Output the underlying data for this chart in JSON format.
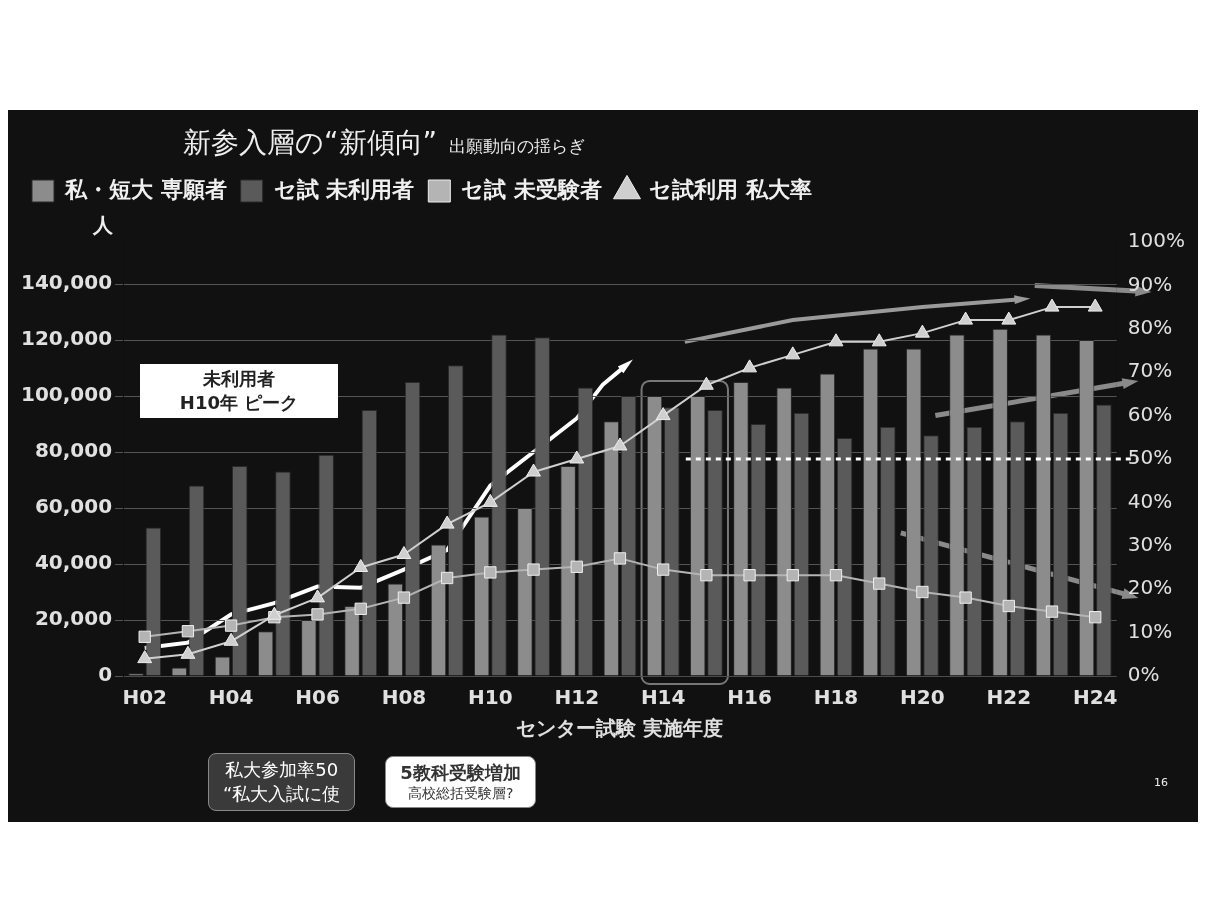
{
  "chart_data": {
    "type": "bar",
    "title": "新参入層の“新傾向”",
    "subtitle": "出願動向の揺らぎ",
    "xlabel": "センター試験 実施年度",
    "ylabel": "人",
    "categories": [
      "H02",
      null,
      "H04",
      null,
      "H06",
      null,
      "H08",
      null,
      "H10",
      null,
      "H12",
      null,
      "H14",
      null,
      "H16",
      null,
      "H18",
      null,
      "H20",
      null,
      "H22",
      null,
      "H24"
    ],
    "series": [
      {
        "name": "私・短大 専願者",
        "color": "#8c8c8c",
        "values": [
          1000,
          3000,
          7000,
          16000,
          20000,
          25000,
          33000,
          47000,
          57000,
          60000,
          75000,
          91000,
          100000,
          100000,
          105000,
          103000,
          108000,
          117000,
          117000,
          122000,
          124000,
          122000,
          120000
        ]
      },
      {
        "name": "セ試 未利用者",
        "color": "#5a5a5a",
        "values": [
          53000,
          68000,
          75000,
          73000,
          79000,
          95000,
          105000,
          111000,
          122000,
          121000,
          103000,
          100000,
          96000,
          95000,
          90000,
          94000,
          85000,
          89000,
          86000,
          89000,
          91000,
          94000,
          97000
        ]
      },
      {
        "name": "セ試 未受験者",
        "type": "line",
        "marker": "square",
        "color": "#b4b4b4",
        "values": [
          14000,
          16000,
          18000,
          21000,
          22000,
          24000,
          28000,
          35000,
          37000,
          38000,
          39000,
          42000,
          38000,
          36000,
          36000,
          36000,
          36000,
          33000,
          30000,
          28000,
          25000,
          23000,
          21000
        ]
      },
      {
        "name": "セ試利用 私大率",
        "type": "line",
        "marker": "triangle",
        "axis": "y2",
        "color": "#cfcfcf",
        "values": [
          4,
          5,
          8,
          14,
          18,
          25,
          28,
          35,
          40,
          47,
          50,
          53,
          60,
          67,
          71,
          74,
          77,
          77,
          79,
          82,
          82,
          85,
          85
        ]
      }
    ],
    "ylim": [
      0,
      155000
    ],
    "yticks": [
      0,
      {
        "value": 20000,
        "label": "20,000"
      },
      {
        "value": 40000,
        "label": "40,000"
      },
      {
        "value": 60000,
        "label": "60,000"
      },
      {
        "value": 80000,
        "label": "80,000"
      },
      {
        "value": 100000,
        "label": "100,000"
      },
      {
        "value": 120000,
        "label": "120,000"
      },
      {
        "value": 140000,
        "label": "140,000"
      }
    ],
    "y2lim": [
      0,
      100
    ],
    "y2ticks": [
      {
        "value": 0,
        "label": "0%"
      },
      {
        "value": 10,
        "label": "10%"
      },
      {
        "value": 20,
        "label": "20%"
      },
      {
        "value": 30,
        "label": "30%"
      },
      {
        "value": 40,
        "label": "40%"
      },
      {
        "value": 50,
        "label": "50%"
      },
      {
        "value": 60,
        "label": "60%"
      },
      {
        "value": 70,
        "label": "70%"
      },
      {
        "value": 80,
        "label": "80%"
      },
      {
        "value": 90,
        "label": "90%"
      },
      {
        "value": 100,
        "label": "100%"
      }
    ],
    "grid": "y",
    "legend": "top left",
    "ref_lines": [
      {
        "axis": "y2",
        "value": 50,
        "color": "#ffffff",
        "line_style": "dotted"
      }
    ],
    "annotations": [
      "未利用者",
      "H10年 ピーク",
      "私大参加率50",
      "“私大入試に使",
      "5教科受験増加",
      "高校総括受験層?",
      "16"
    ]
  }
}
